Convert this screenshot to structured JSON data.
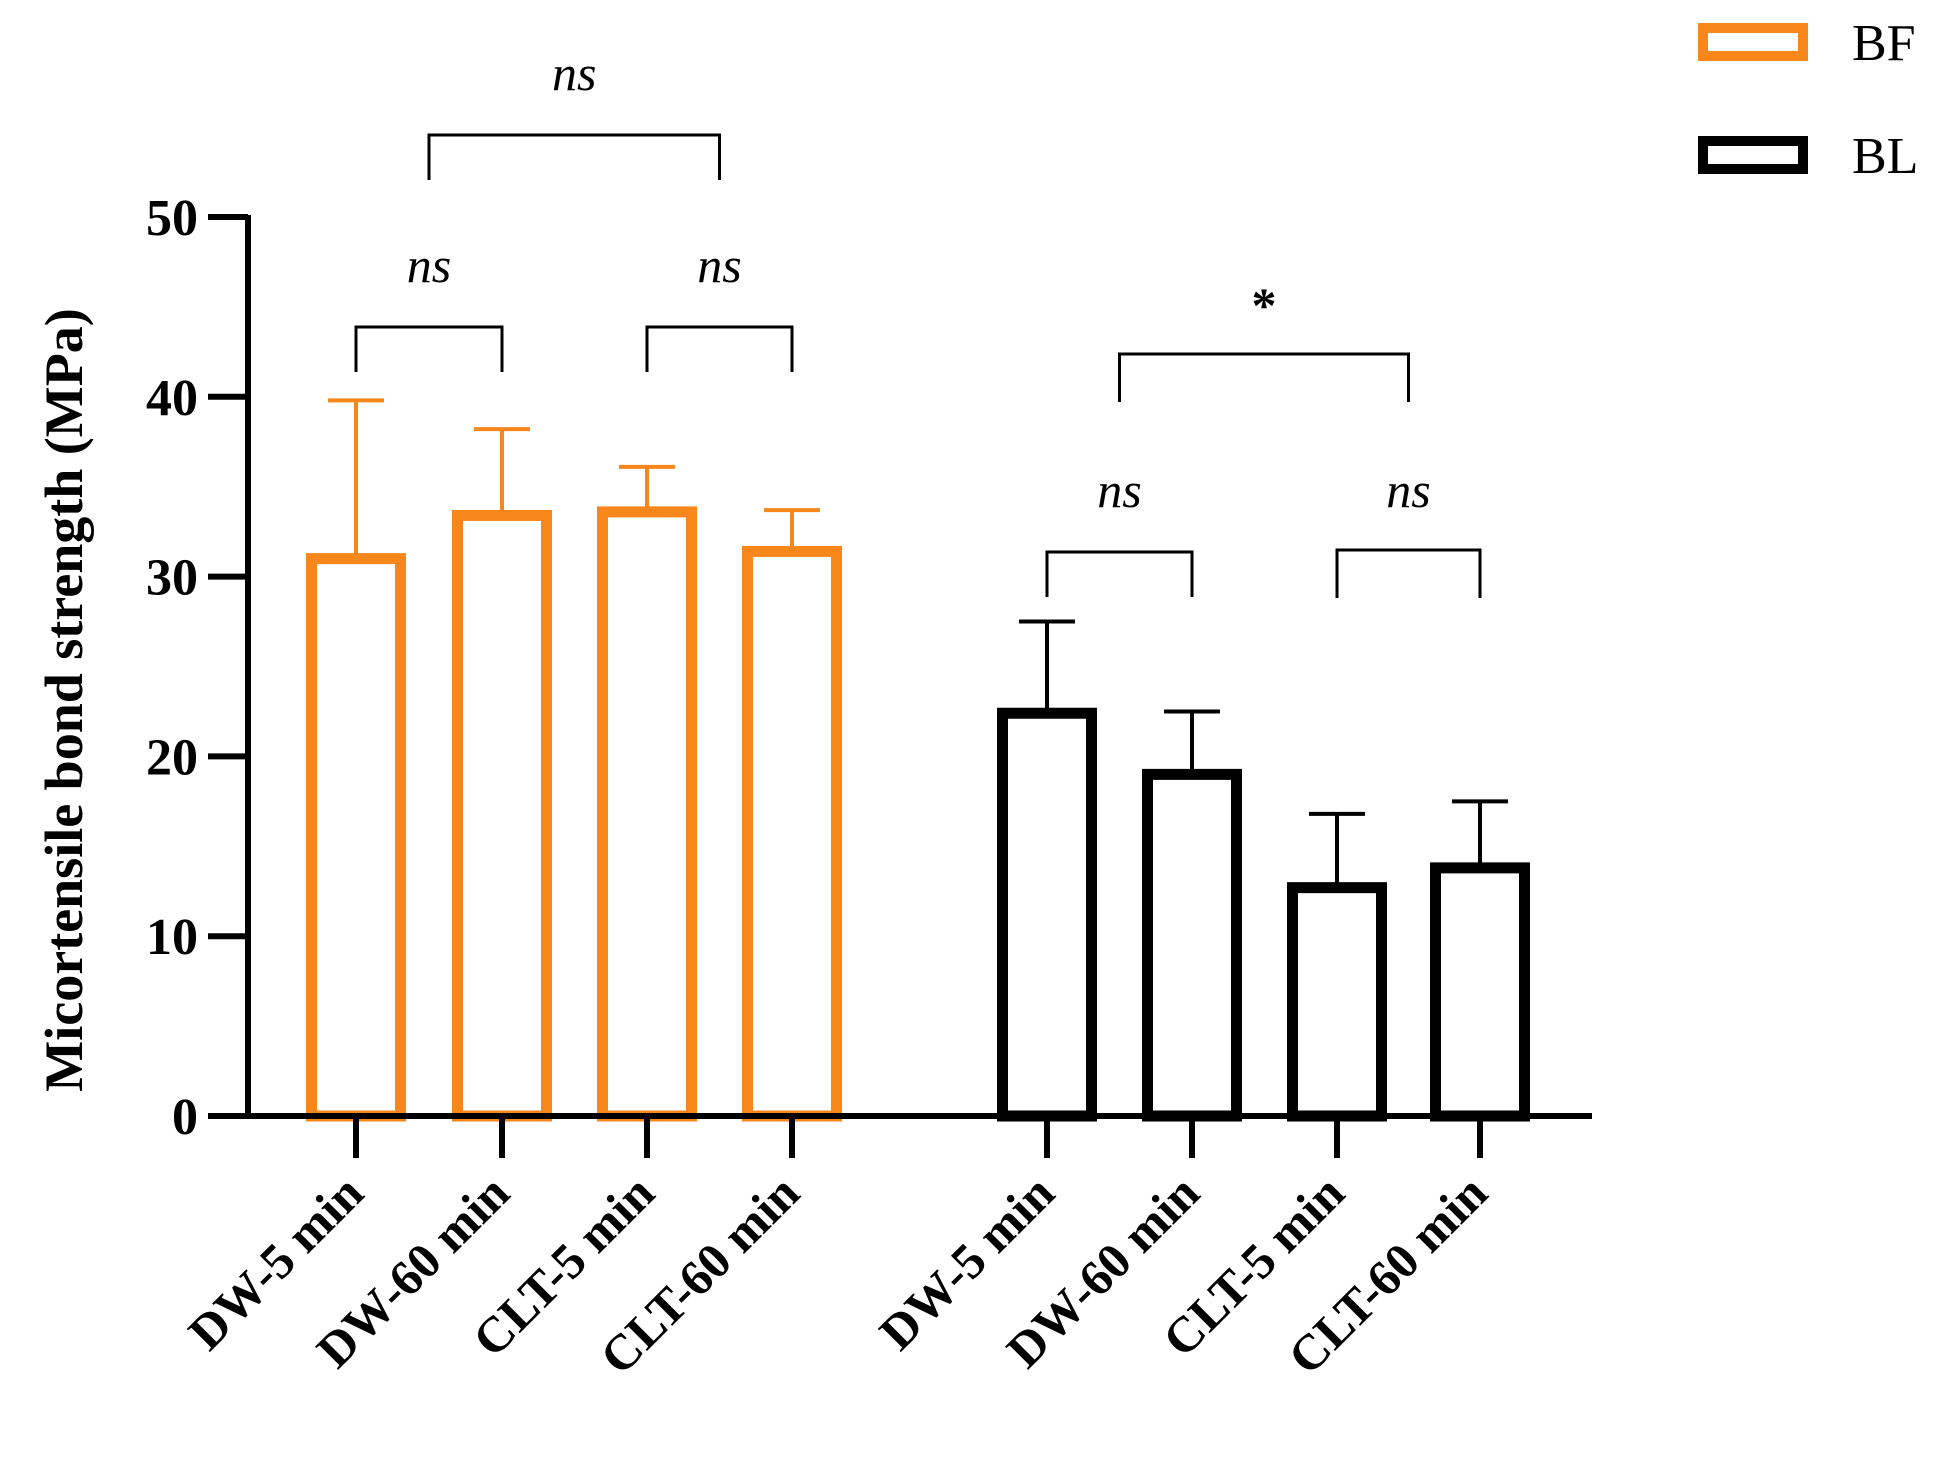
{
  "chart_data": {
    "type": "bar",
    "xlabel": "",
    "ylabel": "Micortensile bond strength (MPa)",
    "ylim": [
      0,
      50
    ],
    "yticks": [
      0,
      10,
      20,
      30,
      40,
      50
    ],
    "grid": false,
    "legend_position": "top-right",
    "legend": [
      {
        "label": "BF",
        "color": "#f7861b"
      },
      {
        "label": "BL",
        "color": "#000000"
      }
    ],
    "groups": [
      {
        "name": "BF",
        "color": "#f7861b",
        "categories": [
          "DW-5 min",
          "DW-60 min",
          "CLT-5 min",
          "CLT-60 min"
        ],
        "values": [
          31.0,
          33.4,
          33.6,
          31.4
        ],
        "error_upper": [
          39.8,
          38.2,
          36.1,
          33.7
        ]
      },
      {
        "name": "BL",
        "color": "#000000",
        "categories": [
          "DW-5 min",
          "DW-60 min",
          "CLT-5 min",
          "CLT-60 min"
        ],
        "values": [
          22.4,
          19.0,
          12.7,
          13.8
        ],
        "error_upper": [
          27.5,
          22.5,
          16.8,
          17.5
        ]
      }
    ],
    "annotations": [
      {
        "group": 0,
        "from": 0,
        "to": 1,
        "label": "ns"
      },
      {
        "group": 0,
        "from": 2,
        "to": 3,
        "label": "ns"
      },
      {
        "group": 0,
        "from": 0.5,
        "to": 2.5,
        "label": "ns"
      },
      {
        "group": 1,
        "from": 0,
        "to": 1,
        "label": "ns"
      },
      {
        "group": 1,
        "from": 2,
        "to": 3,
        "label": "ns"
      },
      {
        "group": 1,
        "from": 0.5,
        "to": 2.5,
        "label": "*"
      }
    ]
  }
}
